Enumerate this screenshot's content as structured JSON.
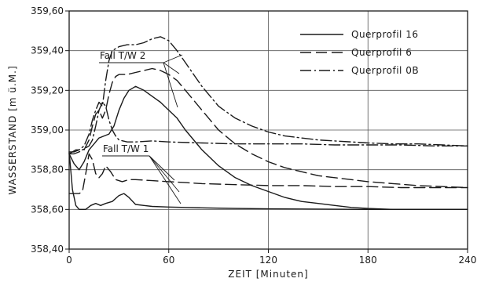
{
  "chart_data": {
    "type": "line",
    "xlabel": "ZEIT [Minuten]",
    "ylabel": "WASSERSTAND [m ü.M.]",
    "xlim": [
      0,
      240
    ],
    "ylim": [
      358.4,
      359.6
    ],
    "x_ticks": [
      0,
      60,
      120,
      180,
      240
    ],
    "x_tick_labels": [
      "0",
      "60",
      "120",
      "180",
      "240"
    ],
    "y_ticks": [
      358.4,
      358.6,
      358.8,
      359.0,
      359.2,
      359.4,
      359.6
    ],
    "y_tick_labels": [
      "358,40",
      "358,60",
      "358,80",
      "359,00",
      "359,20",
      "359,40",
      "359,60"
    ],
    "grid": true,
    "legend_position": "top-right",
    "legend": [
      {
        "label": "Querprofil  16",
        "style": "solid"
      },
      {
        "label": "Querprofil   6",
        "style": "dashed"
      },
      {
        "label": "Querprofil  0B",
        "style": "dashdot"
      }
    ],
    "annotations": [
      {
        "text": "Fall  T/W 2",
        "case": "TW2"
      },
      {
        "text": "Fall  T/W 1",
        "case": "TW1"
      }
    ],
    "series": [
      {
        "case": "TW2",
        "style": "solid",
        "x": [
          0,
          3,
          6,
          9,
          12,
          15,
          18,
          21,
          24,
          27,
          30,
          33,
          36,
          40,
          45,
          50,
          55,
          60,
          65,
          70,
          80,
          90,
          100,
          110,
          120,
          130,
          140,
          150,
          160,
          170,
          180,
          195,
          210,
          225,
          240
        ],
        "y": [
          358.88,
          358.83,
          358.8,
          358.84,
          358.9,
          358.93,
          358.96,
          358.97,
          358.98,
          359.02,
          359.1,
          359.16,
          359.2,
          359.22,
          359.2,
          359.17,
          359.14,
          359.1,
          359.06,
          359.0,
          358.9,
          358.82,
          358.76,
          358.72,
          358.69,
          358.66,
          358.64,
          358.63,
          358.62,
          358.61,
          358.605,
          358.6,
          358.6,
          358.6,
          358.6
        ]
      },
      {
        "case": "TW2",
        "style": "dashed",
        "x": [
          0,
          3,
          6,
          9,
          12,
          14,
          16,
          18,
          20,
          22,
          24,
          26,
          28,
          30,
          35,
          40,
          45,
          50,
          55,
          60,
          65,
          70,
          80,
          90,
          100,
          110,
          120,
          130,
          140,
          150,
          160,
          170,
          180,
          195,
          210,
          225,
          240
        ],
        "y": [
          358.88,
          358.88,
          358.89,
          358.9,
          358.95,
          359.02,
          359.08,
          359.1,
          359.06,
          359.1,
          359.18,
          359.24,
          359.27,
          359.28,
          359.28,
          359.29,
          359.3,
          359.31,
          359.3,
          359.28,
          359.25,
          359.2,
          359.1,
          359.0,
          358.93,
          358.88,
          358.84,
          358.81,
          358.79,
          358.77,
          358.76,
          358.75,
          358.74,
          358.73,
          358.72,
          358.715,
          358.71
        ]
      },
      {
        "case": "TW2",
        "style": "dashdot",
        "x": [
          0,
          3,
          6,
          9,
          12,
          14,
          16,
          18,
          20,
          22,
          24,
          26,
          28,
          30,
          35,
          40,
          45,
          50,
          55,
          60,
          65,
          70,
          80,
          90,
          100,
          110,
          120,
          130,
          140,
          150,
          160,
          170,
          180,
          195,
          210,
          225,
          240
        ],
        "y": [
          358.89,
          358.89,
          358.9,
          358.92,
          358.98,
          359.05,
          359.1,
          359.14,
          359.12,
          359.25,
          359.35,
          359.4,
          359.41,
          359.42,
          359.43,
          359.43,
          359.44,
          359.46,
          359.47,
          359.45,
          359.4,
          359.34,
          359.22,
          359.12,
          359.06,
          359.02,
          358.99,
          358.97,
          358.96,
          358.95,
          358.945,
          358.94,
          358.935,
          358.93,
          358.93,
          358.925,
          358.92
        ]
      },
      {
        "case": "TW1",
        "style": "solid",
        "x": [
          0,
          2,
          4,
          6,
          8,
          10,
          13,
          16,
          19,
          22,
          26,
          30,
          33,
          36,
          40,
          45,
          50,
          60,
          70,
          80,
          100,
          120,
          140,
          160,
          180,
          200,
          220,
          240
        ],
        "y": [
          358.89,
          358.7,
          358.62,
          358.6,
          358.6,
          358.6,
          358.62,
          358.63,
          358.62,
          358.63,
          358.64,
          358.67,
          358.68,
          358.66,
          358.625,
          358.62,
          358.615,
          358.612,
          358.61,
          358.608,
          358.605,
          358.603,
          358.602,
          358.601,
          358.6,
          358.6,
          358.6,
          358.6
        ]
      },
      {
        "case": "TW1",
        "style": "dashed",
        "x": [
          0,
          2,
          4,
          6,
          8,
          10,
          12,
          14,
          16,
          18,
          20,
          22,
          25,
          28,
          32,
          36,
          40,
          50,
          60,
          70,
          80,
          100,
          120,
          140,
          160,
          180,
          200,
          220,
          240
        ],
        "y": [
          358.68,
          358.68,
          358.68,
          358.68,
          358.69,
          358.78,
          358.88,
          358.85,
          358.78,
          358.76,
          358.78,
          358.82,
          358.79,
          358.75,
          358.74,
          358.75,
          358.75,
          358.745,
          358.74,
          358.735,
          358.73,
          358.725,
          358.72,
          358.72,
          358.715,
          358.715,
          358.71,
          358.71,
          358.71
        ]
      },
      {
        "case": "TW1",
        "style": "dashdot",
        "x": [
          0,
          2,
          4,
          6,
          8,
          10,
          12,
          14,
          16,
          18,
          20,
          22,
          24,
          26,
          28,
          30,
          35,
          40,
          50,
          60,
          80,
          100,
          120,
          140,
          160,
          180,
          200,
          220,
          240
        ],
        "y": [
          358.88,
          358.89,
          358.9,
          358.9,
          358.9,
          358.91,
          358.92,
          358.95,
          359.02,
          359.1,
          359.14,
          359.12,
          359.05,
          359.0,
          358.97,
          358.95,
          358.94,
          358.94,
          358.945,
          358.94,
          358.935,
          358.93,
          358.93,
          358.93,
          358.925,
          358.925,
          358.925,
          358.92,
          358.92
        ]
      }
    ]
  }
}
